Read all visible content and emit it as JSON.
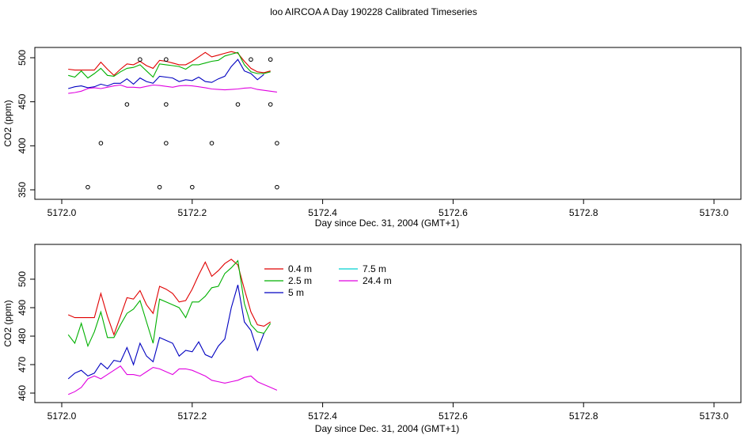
{
  "title": "loo AIRCOA A  Day 190228  Calibrated Timeseries",
  "chart_data": [
    {
      "type": "line",
      "xlabel": "Day since Dec. 31, 2004 (GMT+1)",
      "ylabel": "CO2 (ppm)",
      "xlim": [
        5172.0,
        5173.0
      ],
      "ylim": [
        345,
        505
      ],
      "xticks": [
        "5172.0",
        "5172.2",
        "5172.4",
        "5172.6",
        "5172.8",
        "5173.0"
      ],
      "yticks": [
        "350",
        "400",
        "450",
        "500"
      ],
      "x": [
        5172.0,
        5172.01,
        5172.02,
        5172.03,
        5172.04,
        5172.05,
        5172.06,
        5172.07,
        5172.08,
        5172.09,
        5172.1,
        5172.11,
        5172.12,
        5172.13,
        5172.14,
        5172.15,
        5172.16,
        5172.17,
        5172.18,
        5172.19,
        5172.2,
        5172.21,
        5172.22,
        5172.23,
        5172.24,
        5172.25,
        5172.26,
        5172.27,
        5172.28,
        5172.29,
        5172.3,
        5172.31,
        5172.32,
        5172.33
      ],
      "series": [
        {
          "name": "0.4 m",
          "color": "#e00000",
          "values": [
            null,
            487,
            486,
            486,
            486,
            486,
            495,
            487,
            480,
            487,
            493,
            492,
            496,
            491,
            488,
            497,
            496,
            494,
            492,
            492,
            496,
            501,
            506,
            501,
            503,
            505,
            507,
            505,
            496,
            488,
            484,
            483,
            485,
            null
          ]
        },
        {
          "name": "2.5 m",
          "color": "#00b000",
          "values": [
            null,
            480,
            478,
            485,
            477,
            482,
            488,
            480,
            479,
            484,
            488,
            489,
            492,
            485,
            478,
            493,
            492,
            491,
            490,
            487,
            492,
            492,
            494,
            496,
            497,
            502,
            504,
            506,
            492,
            484,
            482,
            482,
            484,
            null
          ]
        },
        {
          "name": "5 m",
          "color": "#0000c0",
          "values": [
            null,
            465,
            467,
            468,
            466,
            467,
            470,
            468,
            471,
            471,
            476,
            470,
            477,
            473,
            471,
            479,
            478,
            477,
            473,
            475,
            474,
            478,
            473,
            472,
            476,
            479,
            490,
            498,
            485,
            482,
            475,
            481,
            null,
            null
          ]
        },
        {
          "name": "24.4 m",
          "color": "#e000e0",
          "values": [
            null,
            459.5,
            460.5,
            462,
            465,
            466,
            465,
            466.5,
            468,
            469,
            466.5,
            466.5,
            466,
            467.5,
            469,
            468.5,
            467.5,
            466.5,
            468,
            468.5,
            468,
            467,
            466,
            464.5,
            464,
            463.5,
            464,
            464.5,
            465.5,
            466,
            464,
            463,
            462,
            461
          ]
        }
      ],
      "points": {
        "x": [
          5172.04,
          5172.06,
          5172.1,
          5172.12,
          5172.15,
          5172.16,
          5172.16,
          5172.16,
          5172.2,
          5172.23,
          5172.27,
          5172.29,
          5172.32,
          5172.32,
          5172.33,
          5172.33
        ],
        "y": [
          353,
          403,
          447,
          498,
          353,
          403,
          447,
          498,
          353,
          403,
          447,
          498,
          498,
          447,
          403,
          353
        ]
      }
    },
    {
      "type": "line",
      "xlabel": "Day since Dec. 31, 2004 (GMT+1)",
      "ylabel": "CO2 (ppm)",
      "xlim": [
        5172.0,
        5173.0
      ],
      "ylim": [
        458.5,
        508.5
      ],
      "xticks": [
        "5172.0",
        "5172.2",
        "5172.4",
        "5172.6",
        "5172.8",
        "5173.0"
      ],
      "yticks": [
        "460",
        "470",
        "480",
        "490",
        "500"
      ],
      "legend": {
        "position": "top-left",
        "entries": [
          {
            "label": "0.4 m",
            "color": "#e00000"
          },
          {
            "label": "7.5 m",
            "color": "#00d0d0"
          },
          {
            "label": "2.5 m",
            "color": "#00b000"
          },
          {
            "label": "24.4 m",
            "color": "#e000e0"
          },
          {
            "label": "5 m",
            "color": "#0000c0"
          }
        ]
      },
      "x": [
        5172.0,
        5172.01,
        5172.02,
        5172.03,
        5172.04,
        5172.05,
        5172.06,
        5172.07,
        5172.08,
        5172.09,
        5172.1,
        5172.11,
        5172.12,
        5172.13,
        5172.14,
        5172.15,
        5172.16,
        5172.17,
        5172.18,
        5172.19,
        5172.2,
        5172.21,
        5172.22,
        5172.23,
        5172.24,
        5172.25,
        5172.26,
        5172.27,
        5172.28,
        5172.29,
        5172.3,
        5172.31,
        5172.32,
        5172.33
      ],
      "series": [
        {
          "name": "0.4 m",
          "color": "#e00000",
          "values": [
            null,
            487.5,
            486.5,
            486.5,
            486.5,
            486.5,
            495,
            487,
            480.5,
            487,
            493.5,
            493,
            496,
            491,
            488,
            497.5,
            496.5,
            495,
            492,
            492.5,
            496.5,
            501.5,
            506,
            501,
            503,
            505.5,
            507,
            505,
            496.5,
            488.5,
            484,
            483.5,
            485,
            null
          ]
        },
        {
          "name": "2.5 m",
          "color": "#00b000",
          "values": [
            null,
            480.5,
            477.5,
            484.5,
            476.5,
            481.5,
            488.5,
            479.5,
            479.5,
            484,
            488,
            489.5,
            492.5,
            485,
            477.5,
            493,
            492,
            491,
            490,
            486.5,
            492,
            492,
            494,
            497,
            497.5,
            502,
            504,
            506.5,
            491.5,
            484,
            481.5,
            481,
            484.5,
            null
          ]
        },
        {
          "name": "5 m",
          "color": "#0000c0",
          "values": [
            null,
            465,
            467,
            468,
            466,
            467,
            470.5,
            468.5,
            471.5,
            471,
            476,
            470,
            477.5,
            473,
            471,
            479.5,
            478.5,
            477.5,
            473,
            475,
            474.5,
            478,
            473.5,
            472.5,
            476.5,
            479,
            490,
            498,
            485,
            482,
            475,
            481,
            null,
            null
          ]
        },
        {
          "name": "24.4 m",
          "color": "#e000e0",
          "values": [
            null,
            459.5,
            460.5,
            462,
            465,
            466,
            465,
            466.5,
            468,
            469.5,
            466.5,
            466.5,
            466,
            467.5,
            469,
            468.5,
            467.5,
            466.5,
            468.5,
            468.5,
            468,
            467,
            466,
            464.5,
            464,
            463.5,
            464,
            464.5,
            465.5,
            466,
            464,
            463,
            462,
            461
          ]
        }
      ]
    }
  ]
}
